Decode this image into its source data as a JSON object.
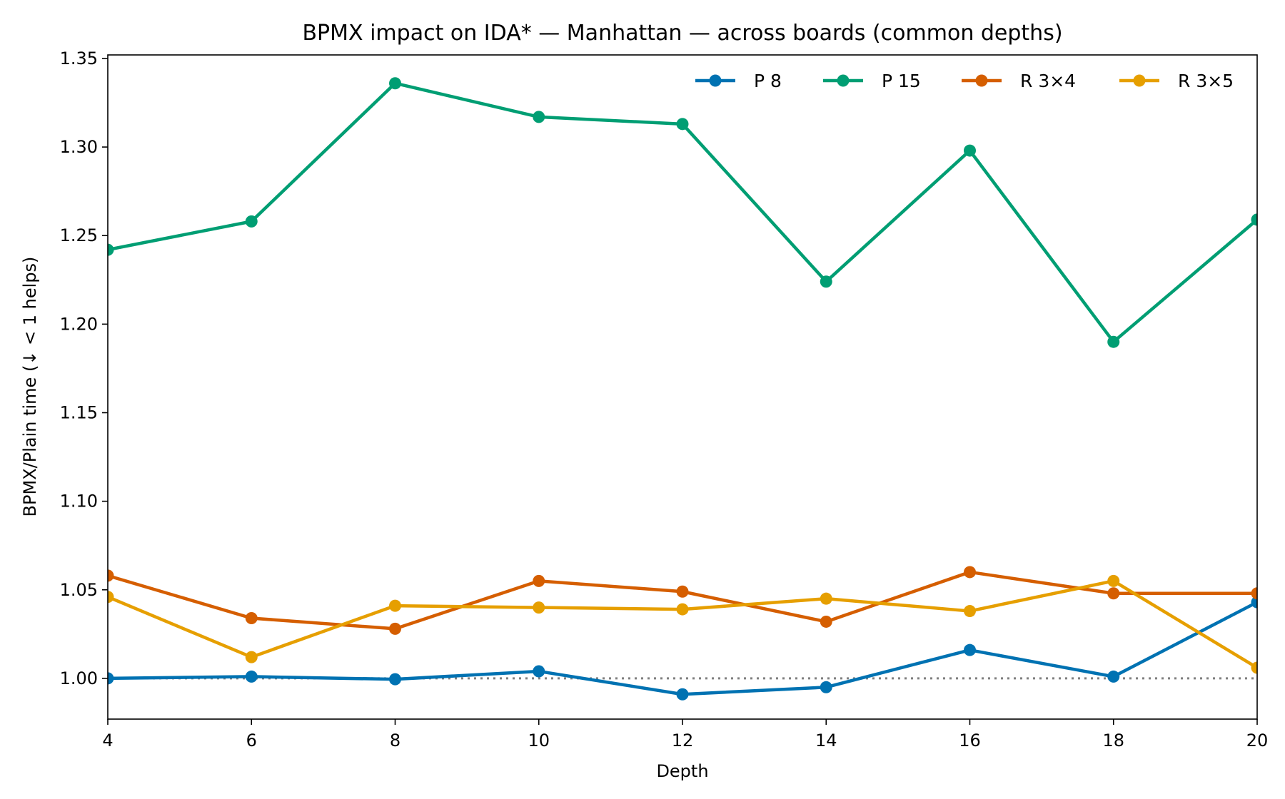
{
  "chart_data": {
    "type": "line",
    "title": "BPMX impact on IDA* — Manhattan — across boards (common depths)",
    "xlabel": "Depth",
    "ylabel": "BPMX/Plain time  (↓ < 1 helps)",
    "xlim": [
      4,
      20
    ],
    "ylim": [
      0.977,
      1.352
    ],
    "xticks": [
      4,
      6,
      8,
      10,
      12,
      14,
      16,
      18,
      20
    ],
    "xtick_labels": [
      "4",
      "6",
      "8",
      "10",
      "12",
      "14",
      "16",
      "18",
      "20"
    ],
    "yticks": [
      1.0,
      1.05,
      1.1,
      1.15,
      1.2,
      1.25,
      1.3,
      1.35
    ],
    "ytick_labels": [
      "1.00",
      "1.05",
      "1.10",
      "1.15",
      "1.20",
      "1.25",
      "1.30",
      "1.35"
    ],
    "reference_line": {
      "y": 1.0,
      "style": "dotted",
      "color": "#808080"
    },
    "legend_position": "top-right",
    "grid": false,
    "x": [
      4,
      6,
      8,
      10,
      12,
      14,
      16,
      18,
      20
    ],
    "series": [
      {
        "name": "P 8",
        "color": "#0072b2",
        "values": [
          1.0,
          1.001,
          0.9995,
          1.004,
          0.991,
          0.995,
          1.016,
          1.001,
          1.043
        ]
      },
      {
        "name": "P 15",
        "color": "#009e73",
        "values": [
          1.242,
          1.258,
          1.336,
          1.317,
          1.313,
          1.224,
          1.298,
          1.19,
          1.259
        ]
      },
      {
        "name": "R 3×4",
        "color": "#d55e00",
        "values": [
          1.058,
          1.034,
          1.028,
          1.055,
          1.049,
          1.032,
          1.06,
          1.048,
          1.048
        ]
      },
      {
        "name": "R 3×5",
        "color": "#e69f00",
        "values": [
          1.046,
          1.012,
          1.041,
          1.04,
          1.039,
          1.045,
          1.038,
          1.055,
          1.006
        ]
      }
    ]
  }
}
